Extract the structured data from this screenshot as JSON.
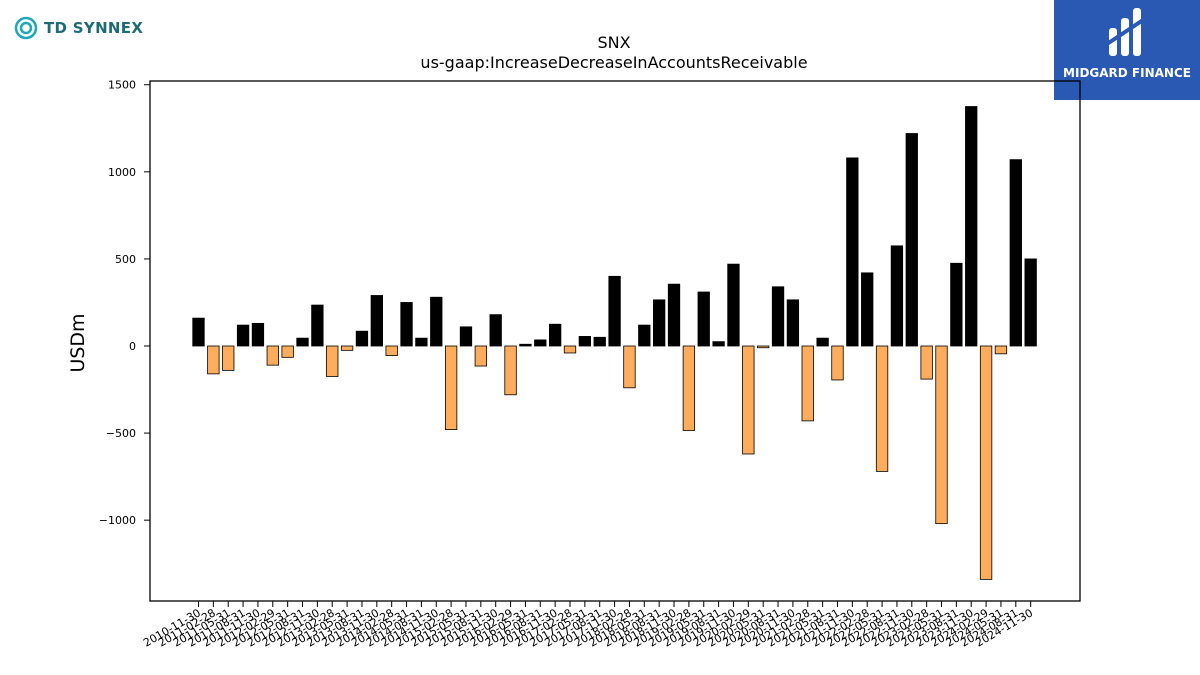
{
  "brand": {
    "left_name": "TD SYNNEX",
    "right_name": "MIDGARD FINANCE"
  },
  "colors": {
    "positive": "#000000",
    "negative": "#ffad5c",
    "bar_edge": "#000000",
    "brand_left": "#1f6b73",
    "brand_right_bg": "#2a59b3"
  },
  "chart_data": {
    "type": "bar",
    "title": "SNX",
    "subtitle": "us-gaap:IncreaseDecreaseInAccountsReceivable",
    "xlabel": "",
    "ylabel": "USDm",
    "ylim": [
      -1450,
      1500
    ],
    "yticks": [
      1500,
      1000,
      500,
      0,
      -500,
      -1000
    ],
    "ytick_labels": [
      "1500",
      "1000",
      "500",
      "0",
      "−500",
      "−1000"
    ],
    "grid": false,
    "categories": [
      "2010-11-30",
      "2011-02-28",
      "2011-05-31",
      "2011-08-31",
      "2011-11-30",
      "2012-02-29",
      "2012-05-31",
      "2012-08-31",
      "2012-11-30",
      "2013-02-28",
      "2013-05-31",
      "2013-08-31",
      "2013-11-30",
      "2014-02-28",
      "2014-05-31",
      "2014-08-31",
      "2014-11-30",
      "2015-02-28",
      "2015-05-31",
      "2015-08-31",
      "2015-11-30",
      "2016-02-29",
      "2016-05-31",
      "2016-08-31",
      "2016-11-30",
      "2017-02-28",
      "2017-05-31",
      "2017-08-31",
      "2017-11-30",
      "2018-02-28",
      "2018-05-31",
      "2018-08-31",
      "2018-11-30",
      "2019-02-28",
      "2019-05-31",
      "2019-08-31",
      "2019-11-30",
      "2020-02-29",
      "2020-05-31",
      "2020-08-31",
      "2020-11-30",
      "2021-02-28",
      "2021-05-31",
      "2021-08-31",
      "2021-11-30",
      "2022-02-28",
      "2022-05-31",
      "2022-08-31",
      "2022-11-30",
      "2023-02-28",
      "2023-05-31",
      "2023-08-31",
      "2023-11-30",
      "2024-02-29",
      "2024-05-31",
      "2024-08-31",
      "2024-11-30"
    ],
    "values": [
      160,
      -160,
      -140,
      120,
      130,
      -110,
      -65,
      45,
      235,
      -175,
      -25,
      85,
      290,
      -55,
      250,
      45,
      280,
      -480,
      110,
      -115,
      180,
      -280,
      10,
      35,
      125,
      -40,
      55,
      50,
      400,
      -240,
      120,
      265,
      355,
      -485,
      310,
      25,
      470,
      -620,
      -10,
      340,
      265,
      -430,
      45,
      -195,
      1080,
      420,
      -720,
      575,
      1220,
      -190,
      -1020,
      475,
      1375,
      -1340,
      -45,
      1070,
      500
    ]
  }
}
